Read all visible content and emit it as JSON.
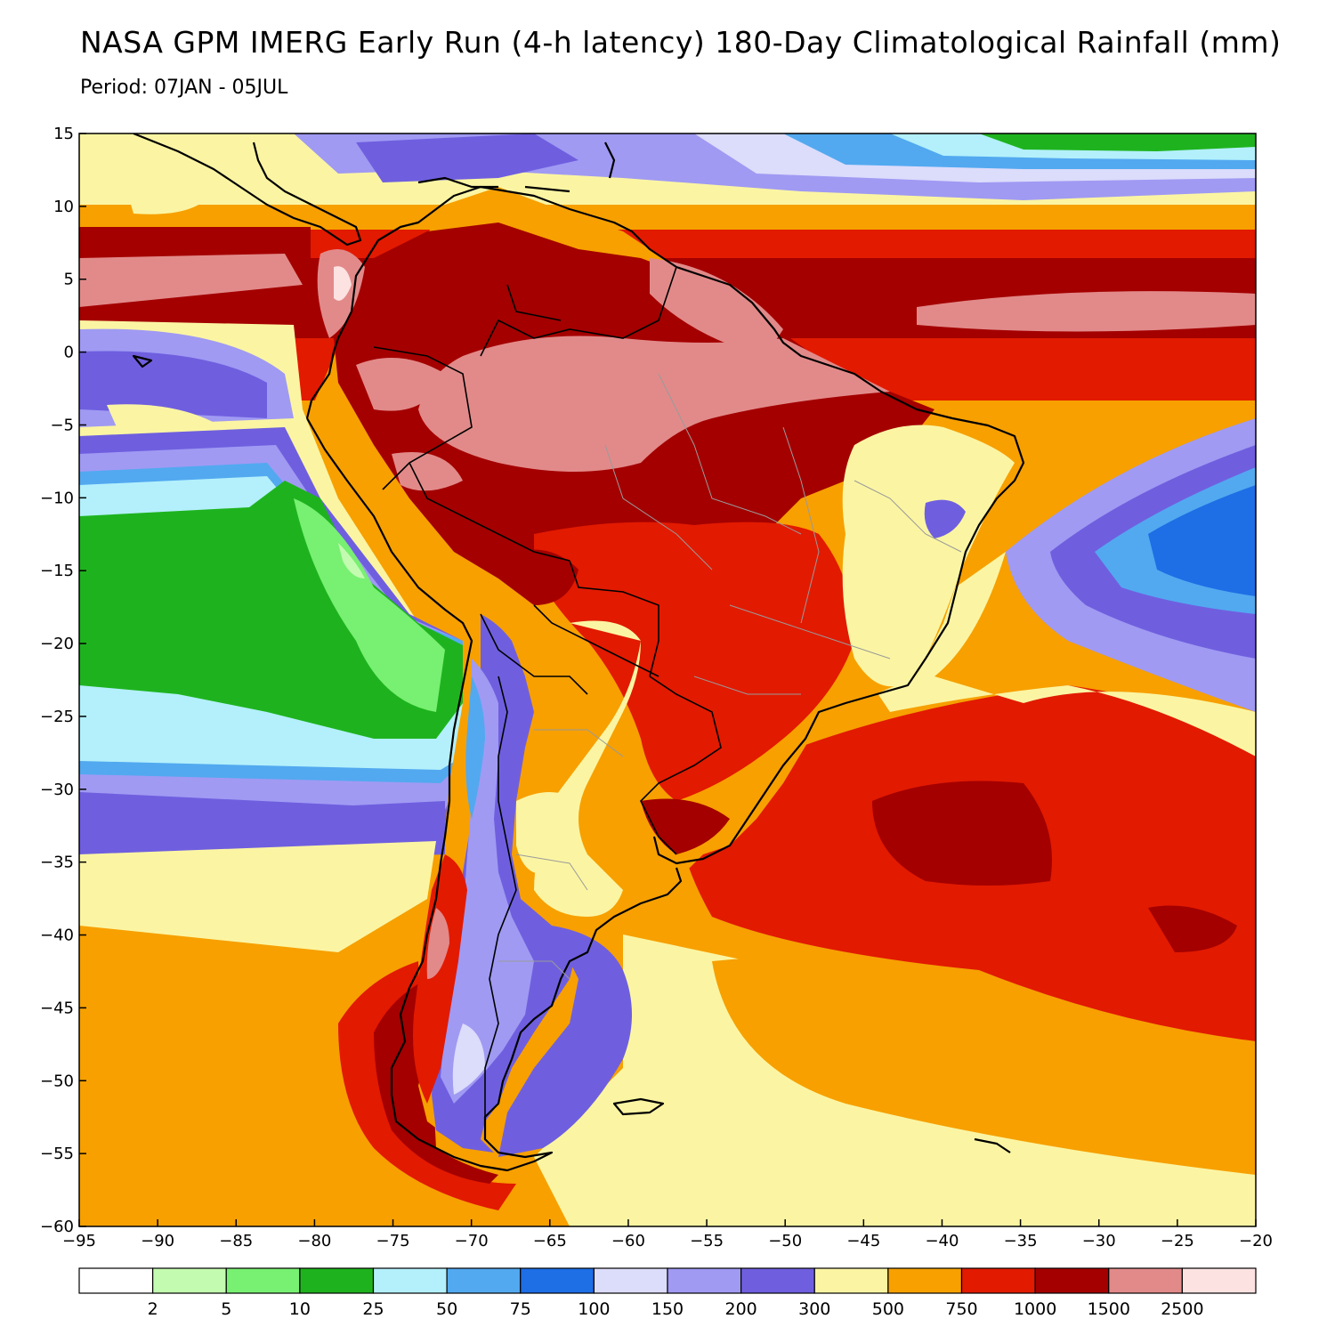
{
  "title": "NASA GPM IMERG Early Run (4-h latency) 180-Day Climatological Rainfall (mm)",
  "subtitle": "Period: 07JAN - 05JUL",
  "map": {
    "lon_range": [
      -95,
      -20
    ],
    "lat_range": [
      -60,
      15
    ],
    "lon_ticks": [
      "−95",
      "−90",
      "−85",
      "−80",
      "−75",
      "−70",
      "−65",
      "−60",
      "−55",
      "−50",
      "−45",
      "−40",
      "−35",
      "−30",
      "−25",
      "−20"
    ],
    "lat_ticks": [
      "15",
      "10",
      "5",
      "0",
      "−5",
      "−10",
      "−15",
      "−20",
      "−25",
      "−30",
      "−35",
      "−40",
      "−45",
      "−50",
      "−55",
      "−60"
    ],
    "ocean_color": "#fbf5a3"
  },
  "colorbar": {
    "labels": [
      "2",
      "5",
      "10",
      "25",
      "50",
      "75",
      "100",
      "150",
      "200",
      "300",
      "500",
      "750",
      "1000",
      "1500",
      "2500"
    ],
    "colors": [
      "#ffffff",
      "#c3fbb0",
      "#78f072",
      "#1eb31e",
      "#b3f0fb",
      "#52a9f0",
      "#1e6ee6",
      "#dcdcfb",
      "#a09af3",
      "#6f5fdf",
      "#fbf5a3",
      "#f7a000",
      "#e21a00",
      "#a40000",
      "#e28a8a",
      "#fde2e2"
    ]
  }
}
